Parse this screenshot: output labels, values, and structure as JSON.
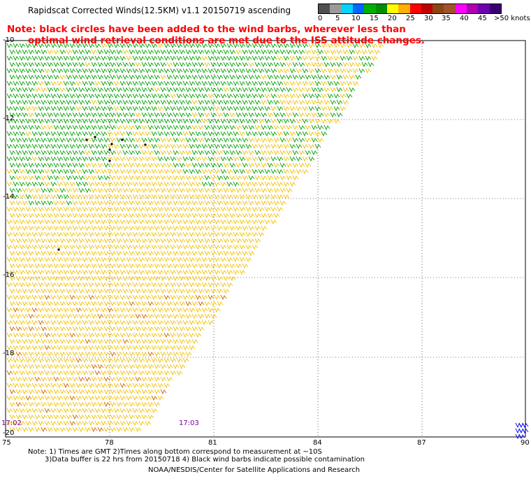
{
  "title": "Rapidscat Corrected Winds(12.5KM) v1.1 20150719 ascending",
  "note": {
    "line1": "Note: black circles have been added to the wind barbs, wherever less than",
    "line2": "optimal wind retrieval conditions are met due to the ISS attitude changes."
  },
  "legend": {
    "labels": [
      "0",
      "5",
      "10",
      "15",
      "20",
      "25",
      "30",
      "35",
      "40",
      "45",
      ">50 knots"
    ],
    "colors": [
      "#505050",
      "#9a9a9a",
      "#00d4ff",
      "#0066ff",
      "#00b000",
      "#008c00",
      "#ffff00",
      "#ffb000",
      "#ff0000",
      "#c00000",
      "#8b4513",
      "#a0522d",
      "#ff00ff",
      "#b000b0",
      "#7000b0",
      "#3a0070"
    ]
  },
  "axes": {
    "y_labels": [
      "-10",
      "-12",
      "-14",
      "-16",
      "-18",
      "-20"
    ],
    "x_labels": [
      "75",
      "78",
      "81",
      "84",
      "87",
      "90"
    ]
  },
  "time_labels": [
    "17:02",
    "17:03"
  ],
  "footer": {
    "line1": "Note: 1) Times are GMT 2)Times along bottom correspond to measurement at ~10S",
    "line2": "3)Data buffer is 22 hrs from 20150718 4) Black wind barbs indicate possible contamination",
    "line3": "NOAA/NESDIS/Center for Satellite Applications and Research"
  },
  "wind_field": {
    "north_region_color": "#00a000",
    "south_region_color": "#f0c000",
    "strong_wind_color": "#d06000",
    "contamination_color": "#000000",
    "low_wind_color": "#0000ff"
  }
}
